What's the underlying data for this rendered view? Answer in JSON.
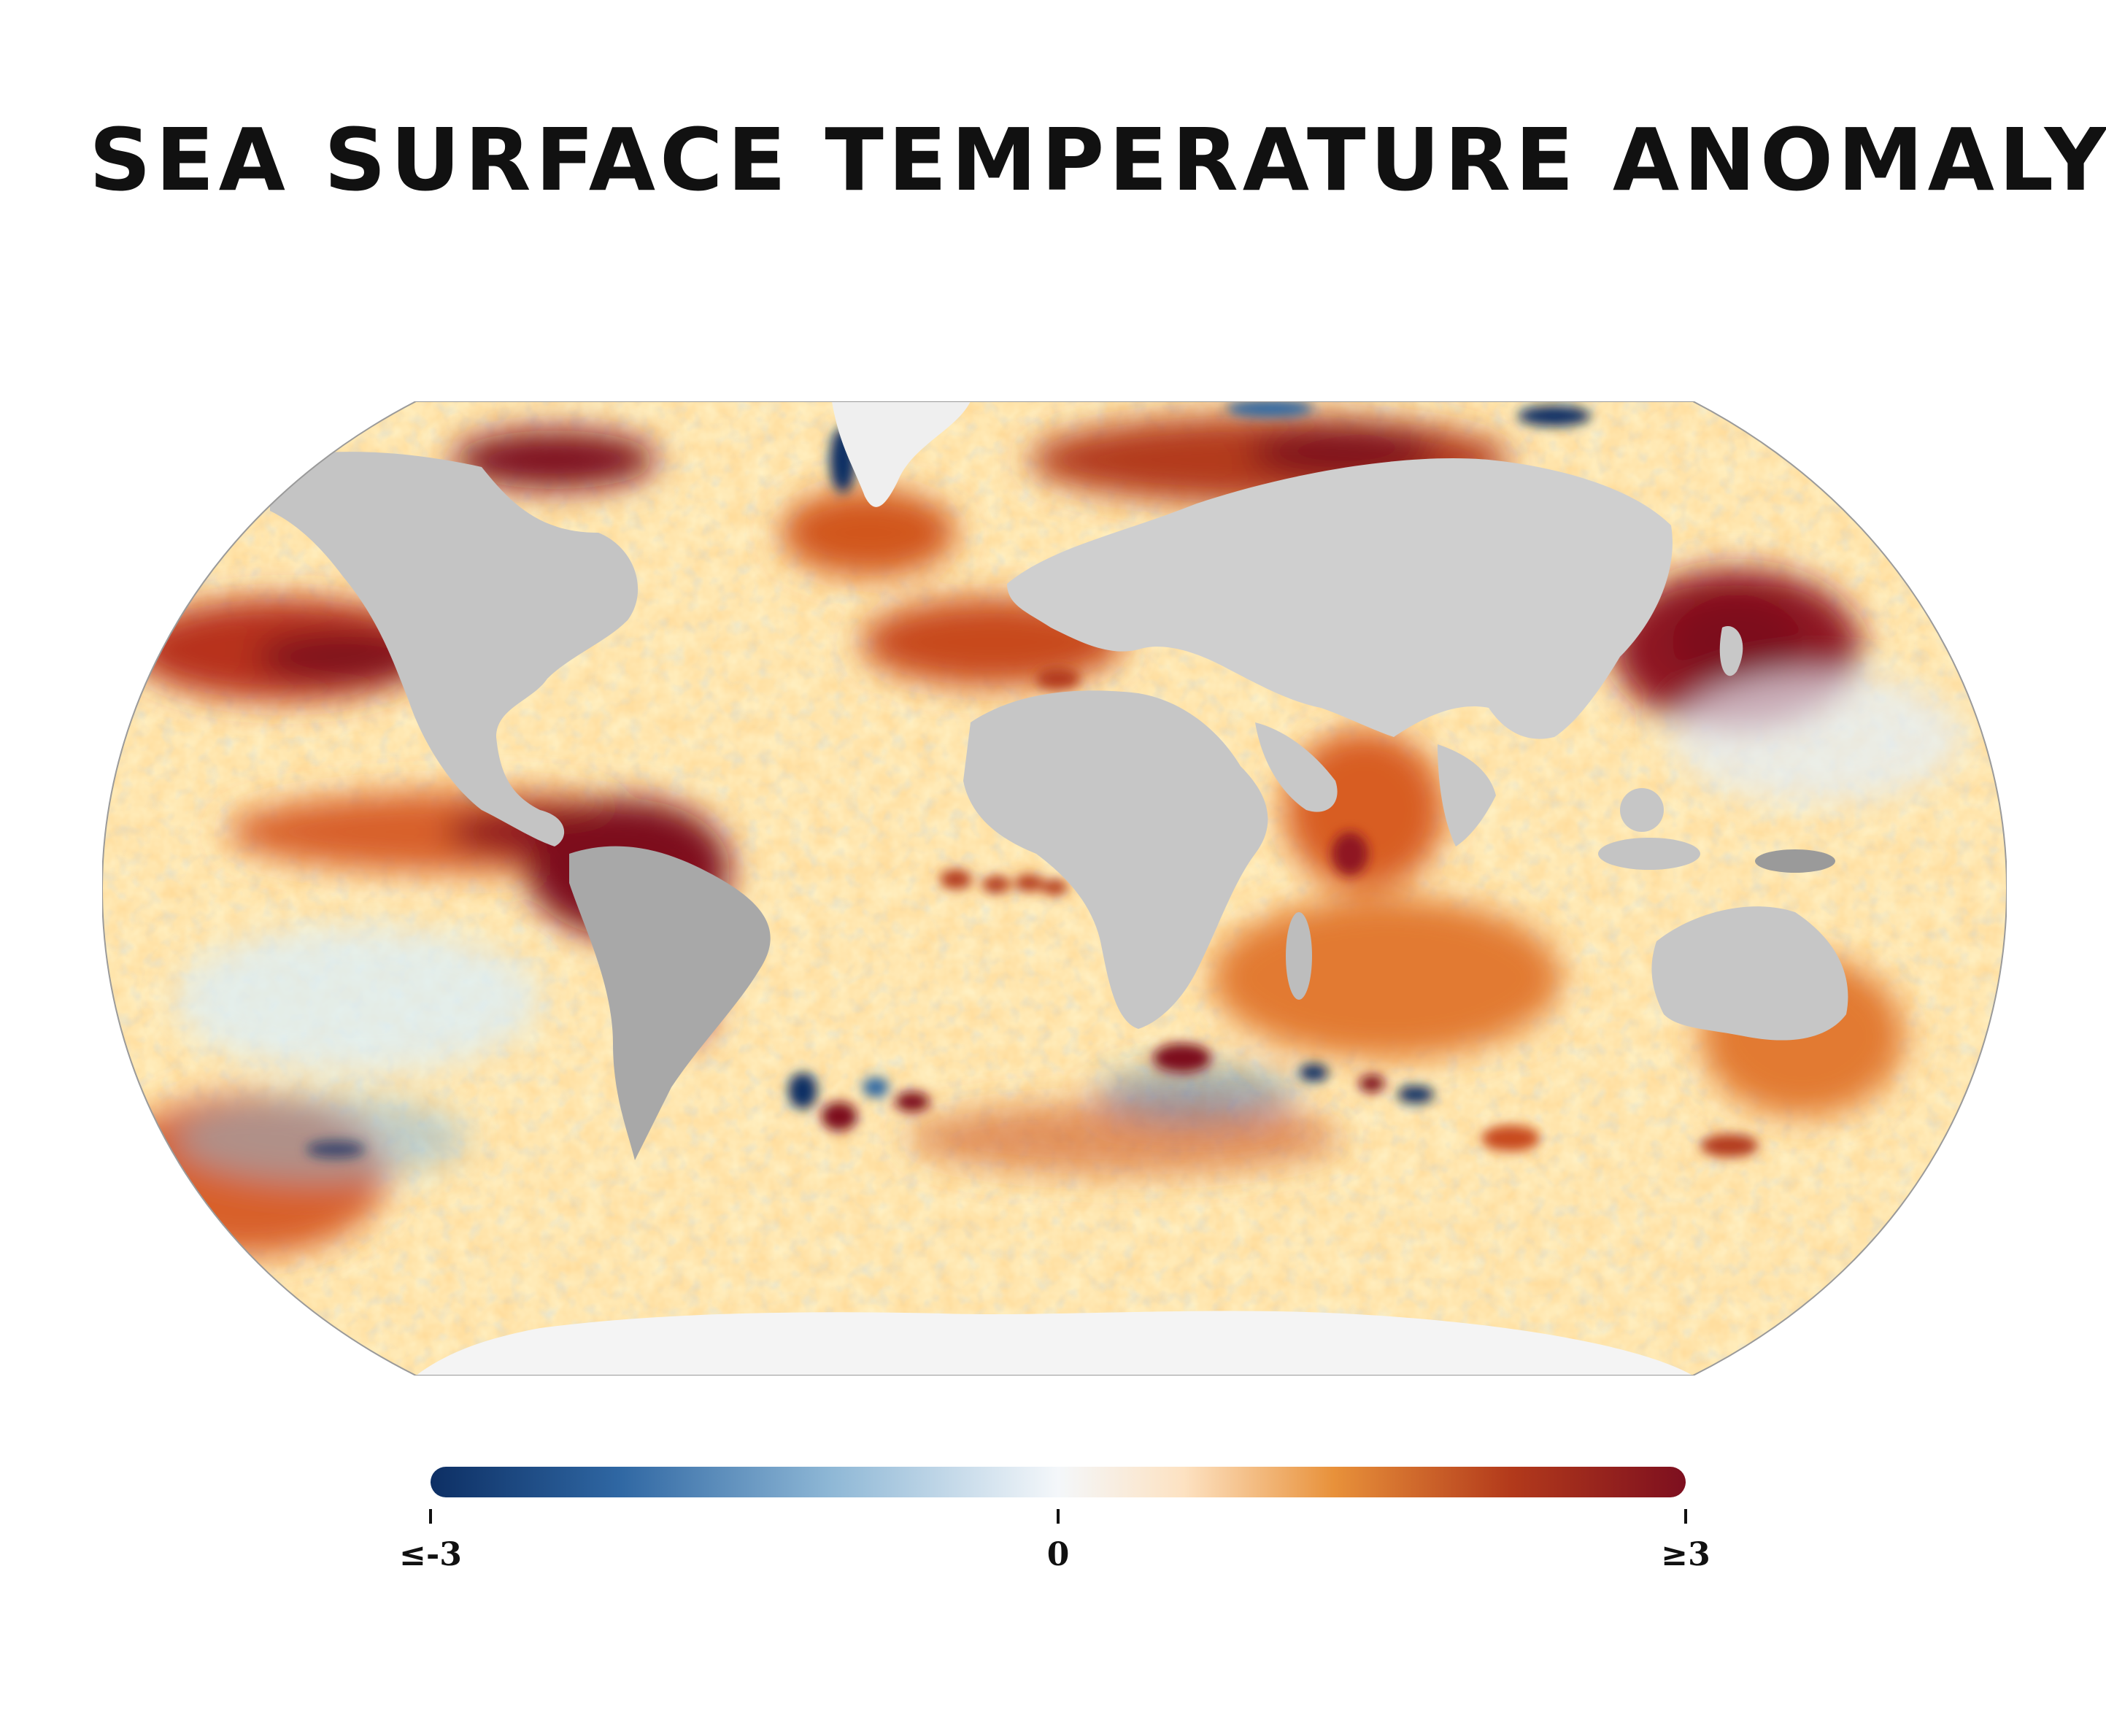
{
  "title": "SEA SURFACE TEMPERATURE ANOMALY",
  "colors": {
    "land": "#c8c8c8",
    "land_dark": "#9a9a9a",
    "ice": "#f2f2f2",
    "ocean_base": "#fff3c8",
    "scale": [
      "#0d2f64",
      "#2f67a3",
      "#8fb8d6",
      "#f4f7fa",
      "#fff4df",
      "#f5b86a",
      "#e8772a",
      "#b33a1b",
      "#7d0f1f"
    ]
  },
  "legend": {
    "min_label": "≤-3",
    "mid_label": "0",
    "max_label": "≥3",
    "range": [
      -3,
      3
    ]
  }
}
